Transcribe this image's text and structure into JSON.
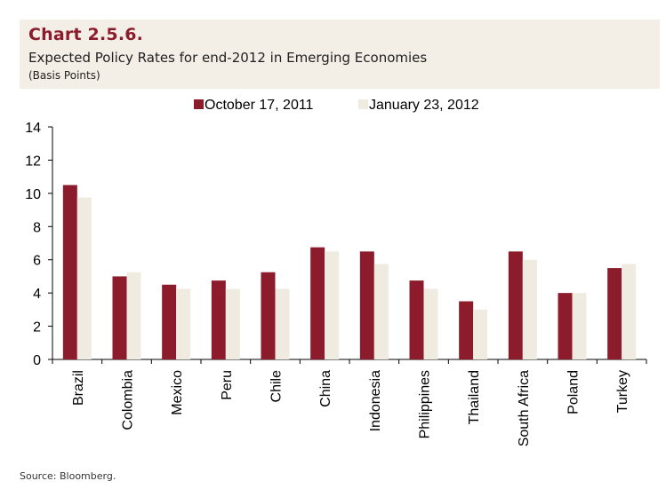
{
  "header": {
    "chart_number": "Chart 2.5.6.",
    "title": "Expected Policy Rates for end-2012 in Emerging Economies",
    "subtitle": "(Basis Points)"
  },
  "footer": {
    "source": "Source: Bloomberg."
  },
  "colors": {
    "series1": "#8c1c2b",
    "series2": "#efebe0",
    "header_bg": "#f3eee6",
    "title_accent": "#8c1c2b"
  },
  "chart_data": {
    "type": "bar",
    "categories": [
      "Brazil",
      "Colombia",
      "Mexico",
      "Peru",
      "Chile",
      "China",
      "Indonesia",
      "Philippines",
      "Thailand",
      "South Africa",
      "Poland",
      "Turkey"
    ],
    "series": [
      {
        "name": "October 17, 2011",
        "values": [
          10.5,
          5.0,
          4.5,
          4.75,
          5.25,
          6.75,
          6.5,
          4.75,
          3.5,
          6.5,
          4.0,
          5.5
        ]
      },
      {
        "name": "January 23, 2012",
        "values": [
          9.75,
          5.25,
          4.25,
          4.25,
          4.25,
          6.5,
          5.75,
          4.25,
          3.0,
          6.0,
          4.0,
          5.75
        ]
      }
    ],
    "ylim": [
      0,
      14
    ],
    "yticks": [
      0,
      2,
      4,
      6,
      8,
      10,
      12,
      14
    ],
    "legend_position": "top-center",
    "grid": false
  }
}
